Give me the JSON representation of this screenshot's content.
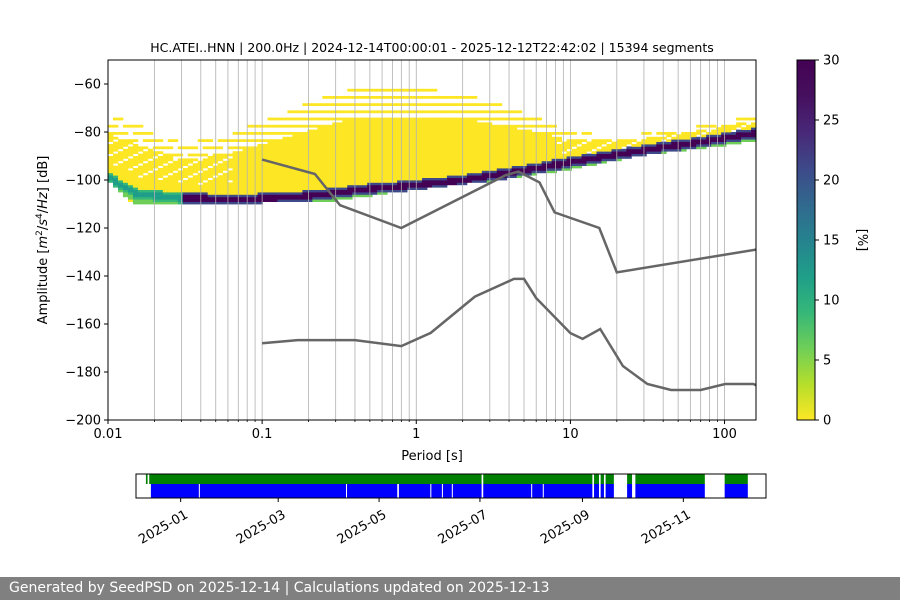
{
  "chart_data": [
    {
      "type": "heatmap",
      "title": "HC.ATEI..HNN | 200.0Hz | 2024-12-14T00:00:01 - 2025-12-12T22:42:02 | 15394 segments",
      "xlabel": "Period [s]",
      "ylabel_parts": [
        "Amplitude [",
        "m",
        "2",
        "/",
        "s",
        "4",
        "/",
        "Hz",
        "] [dB]"
      ],
      "xscale": "log",
      "xlim": [
        0.01,
        160
      ],
      "ylim": [
        -200,
        -50
      ],
      "x_ticks": [
        {
          "value": 0.01,
          "label": "0.01"
        },
        {
          "value": 0.1,
          "label": "0.1"
        },
        {
          "value": 1,
          "label": "1"
        },
        {
          "value": 10,
          "label": "10"
        },
        {
          "value": 100,
          "label": "100"
        }
      ],
      "y_ticks": [
        {
          "value": -60,
          "label": "−60"
        },
        {
          "value": -80,
          "label": "−80"
        },
        {
          "value": -100,
          "label": "−100"
        },
        {
          "value": -120,
          "label": "−120"
        },
        {
          "value": -140,
          "label": "−140"
        },
        {
          "value": -160,
          "label": "−160"
        },
        {
          "value": -180,
          "label": "−180"
        },
        {
          "value": -200,
          "label": "−200"
        }
      ],
      "grid": true,
      "colormap": "viridis_r",
      "colorbar": {
        "label": "[%]",
        "range": [
          0,
          30
        ],
        "ticks": [
          {
            "value": 0,
            "label": "0"
          },
          {
            "value": 5,
            "label": "5"
          },
          {
            "value": 10,
            "label": "10"
          },
          {
            "value": 15,
            "label": "15"
          },
          {
            "value": 20,
            "label": "20"
          },
          {
            "value": 25,
            "label": "25"
          },
          {
            "value": 30,
            "label": "30"
          }
        ]
      },
      "noise_models": [
        {
          "points": [
            [
              0.1,
              -91.5
            ],
            [
              0.22,
              -97.5
            ],
            [
              0.32,
              -110.5
            ],
            [
              0.8,
              -120
            ],
            [
              3.8,
              -98
            ],
            [
              4.6,
              -96.5
            ],
            [
              6.3,
              -101
            ],
            [
              7.9,
              -113.5
            ],
            [
              15.4,
              -120
            ],
            [
              20,
              -138.5
            ],
            [
              160,
              -129
            ]
          ]
        },
        {
          "points": [
            [
              0.1,
              -168
            ],
            [
              0.17,
              -166.7
            ],
            [
              0.4,
              -166.7
            ],
            [
              0.8,
              -169.2
            ],
            [
              1.24,
              -163.7
            ],
            [
              2.4,
              -148.6
            ],
            [
              4.3,
              -141.2
            ],
            [
              5,
              -141.2
            ],
            [
              6,
              -149.2
            ],
            [
              10,
              -163.8
            ],
            [
              12,
              -166.2
            ],
            [
              15.6,
              -162.1
            ],
            [
              21.9,
              -177.5
            ],
            [
              31.6,
              -185
            ],
            [
              45,
              -187.5
            ],
            [
              70,
              -187.5
            ],
            [
              101,
              -185
            ],
            [
              154,
              -185
            ],
            [
              160,
              -185.5
            ]
          ]
        }
      ],
      "pdf_mode": {
        "points": [
          [
            0.01,
            -99
          ],
          [
            0.015,
            -106
          ],
          [
            0.03,
            -108
          ],
          [
            0.08,
            -108.5
          ],
          [
            0.2,
            -107
          ],
          [
            0.5,
            -104
          ],
          [
            1,
            -102.5
          ],
          [
            2,
            -100.5
          ],
          [
            4,
            -97.5
          ],
          [
            10,
            -93
          ],
          [
            30,
            -88
          ],
          [
            100,
            -83
          ],
          [
            160,
            -81
          ]
        ]
      },
      "pdf_upper_envelope": {
        "points": [
          [
            0.01,
            -73
          ],
          [
            0.02,
            -80
          ],
          [
            0.03,
            -85
          ],
          [
            0.05,
            -83
          ],
          [
            0.1,
            -76
          ],
          [
            0.2,
            -68
          ],
          [
            0.4,
            -62
          ],
          [
            1,
            -62
          ],
          [
            2,
            -64
          ],
          [
            4,
            -70
          ],
          [
            6,
            -74
          ],
          [
            10,
            -80
          ],
          [
            20,
            -82
          ],
          [
            40,
            -80
          ],
          [
            100,
            -76
          ],
          [
            160,
            -73
          ]
        ]
      },
      "pdf_lower_envelope": {
        "points": [
          [
            0.01,
            -101
          ],
          [
            0.015,
            -111
          ],
          [
            0.03,
            -110.5
          ],
          [
            0.1,
            -110
          ],
          [
            0.3,
            -109
          ],
          [
            1,
            -104.5
          ],
          [
            3,
            -101
          ],
          [
            10,
            -96
          ],
          [
            30,
            -90
          ],
          [
            100,
            -86
          ],
          [
            160,
            -84
          ]
        ]
      }
    },
    {
      "type": "timeline",
      "x_ticks": [
        {
          "value": "2025-01",
          "label": "2025-01"
        },
        {
          "value": "2025-03",
          "label": "2025-03"
        },
        {
          "value": "2025-05",
          "label": "2025-05"
        },
        {
          "value": "2025-07",
          "label": "2025-07"
        },
        {
          "value": "2025-09",
          "label": "2025-09"
        },
        {
          "value": "2025-11",
          "label": "2025-11"
        }
      ],
      "xlim": [
        "2024-12-05",
        "2025-12-21"
      ],
      "bars": [
        {
          "name": "data",
          "color": "#008000",
          "intervals": [
            [
              "2024-12-11",
              "2024-12-12"
            ],
            [
              "2024-12-13",
              "2025-07-02"
            ],
            [
              "2025-07-03",
              "2025-09-07"
            ],
            [
              "2025-09-08",
              "2025-09-11"
            ],
            [
              "2025-09-12",
              "2025-09-14"
            ],
            [
              "2025-09-15",
              "2025-09-20"
            ],
            [
              "2025-09-28",
              "2025-10-01"
            ],
            [
              "2025-10-03",
              "2025-11-14"
            ],
            [
              "2025-11-26",
              "2025-12-10"
            ]
          ]
        },
        {
          "name": "used",
          "color": "#0000ff",
          "intervals": [
            [
              "2024-12-14",
              "2025-05-12"
            ],
            [
              "2025-05-13",
              "2025-07-02"
            ],
            [
              "2025-07-03",
              "2025-09-07"
            ],
            [
              "2025-09-08",
              "2025-09-11"
            ],
            [
              "2025-09-12",
              "2025-09-14"
            ],
            [
              "2025-09-15",
              "2025-09-20"
            ],
            [
              "2025-09-28",
              "2025-10-01"
            ],
            [
              "2025-10-03",
              "2025-11-14"
            ],
            [
              "2025-11-26",
              "2025-12-10"
            ]
          ]
        },
        {
          "name": "gaps",
          "color": "#ffffff",
          "points": [
            "2025-01-12",
            "2025-04-11",
            "2025-06-01",
            "2025-06-08",
            "2025-06-14",
            "2025-08-01",
            "2025-08-08"
          ]
        }
      ]
    }
  ],
  "footer": {
    "text": "Generated by SeedPSD on 2025-12-14 | Calculations updated on 2025-12-13"
  }
}
